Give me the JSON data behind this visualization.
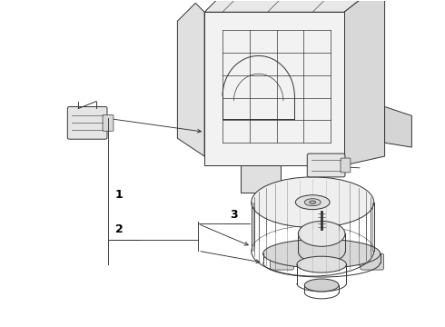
{
  "background_color": "#ffffff",
  "line_color": "#333333",
  "figure_width": 4.9,
  "figure_height": 3.6,
  "dpi": 100,
  "part_lw": 0.7,
  "callout_lw": 0.65
}
